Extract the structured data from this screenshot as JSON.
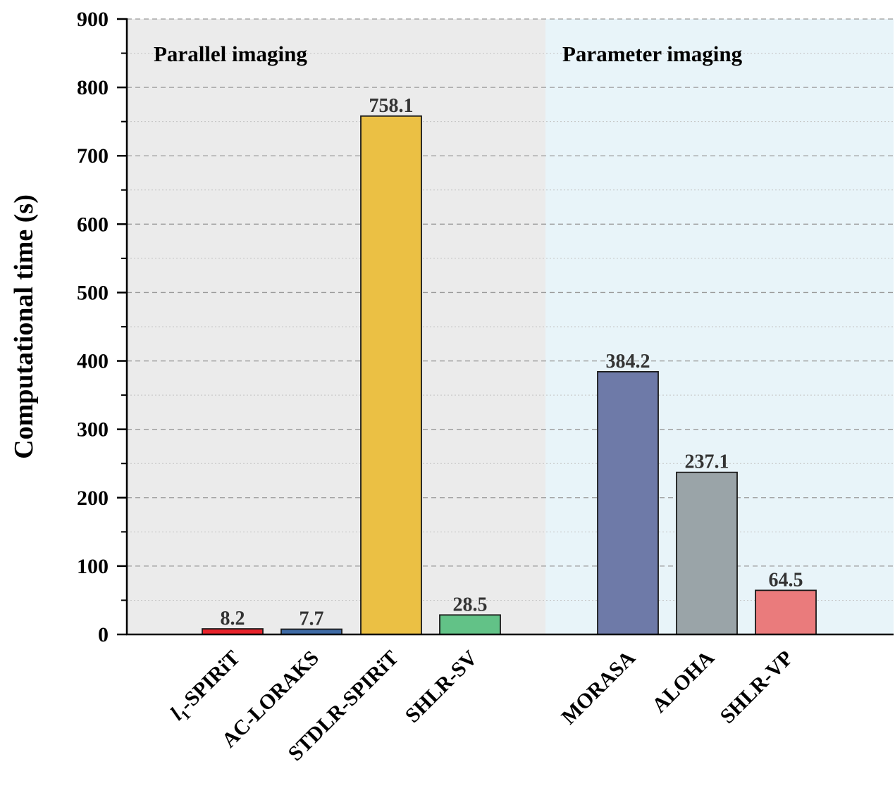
{
  "chart_data": {
    "type": "bar",
    "title": "",
    "xlabel": "",
    "ylabel": "Computational time (s)",
    "ylim": [
      0,
      900
    ],
    "yticks": [
      0,
      100,
      200,
      300,
      400,
      500,
      600,
      700,
      800,
      900
    ],
    "grid": "horizontal dashed",
    "groups": [
      {
        "label": "Parallel imaging",
        "background": "#ebebeb",
        "categories": [
          "l1-SPIRiT",
          "AC-LORAKS",
          "STDLR-SPIRiT",
          "SHLR-SV"
        ],
        "category_display": [
          {
            "main": "l",
            "sub": "1",
            "rest": "-SPIRiT"
          },
          {
            "main": "AC-LORAKS",
            "sub": "",
            "rest": ""
          },
          {
            "main": "STDLR-SPIRiT",
            "sub": "",
            "rest": ""
          },
          {
            "main": "SHLR-SV",
            "sub": "",
            "rest": ""
          }
        ],
        "values": [
          8.2,
          7.7,
          758.1,
          28.5
        ],
        "value_labels": [
          "8.2",
          "7.7",
          "758.1",
          "28.5"
        ],
        "colors": [
          "#e8232b",
          "#3e6aa5",
          "#ebc044",
          "#62c287"
        ]
      },
      {
        "label": "Parameter imaging",
        "background": "#e8f4f9",
        "categories": [
          "MORASA",
          "ALOHA",
          "SHLR-VP"
        ],
        "category_display": [
          {
            "main": "MORASA",
            "sub": "",
            "rest": ""
          },
          {
            "main": "ALOHA",
            "sub": "",
            "rest": ""
          },
          {
            "main": "SHLR-VP",
            "sub": "",
            "rest": ""
          }
        ],
        "values": [
          384.2,
          237.1,
          64.5
        ],
        "value_labels": [
          "384.2",
          "237.1",
          "64.5"
        ],
        "colors": [
          "#6e7aa8",
          "#9aa4a8",
          "#ea7b7c"
        ]
      }
    ]
  }
}
